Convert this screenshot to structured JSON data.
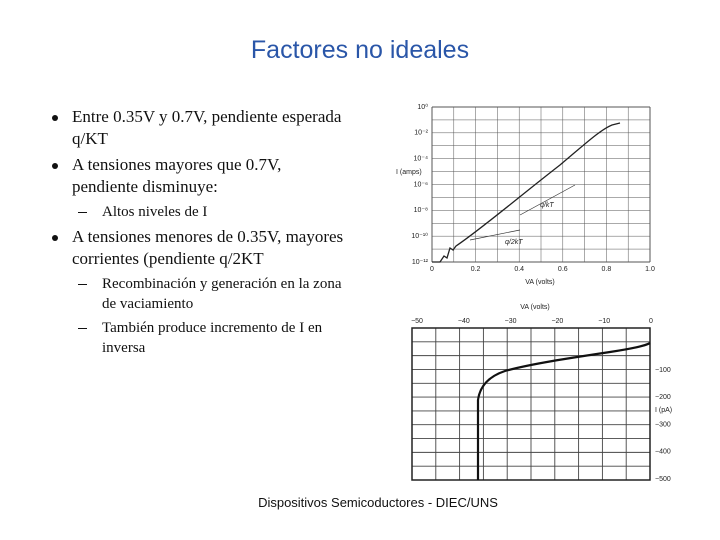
{
  "title": "Factores no ideales",
  "bullets": [
    {
      "text": "Entre 0.35V y 0.7V, pendiente esperada q/KT",
      "sub": []
    },
    {
      "text": "A tensiones mayores que 0.7V, pendiente disminuye:",
      "sub": [
        "Altos niveles de I"
      ]
    },
    {
      "text": "A tensiones menores de 0.35V, mayores corrientes (pendiente q/2KT",
      "sub": [
        "Recombinación y generación en la zona de vaciamiento",
        "También produce incremento de I en inversa"
      ]
    }
  ],
  "forward_plot": {
    "y_label": "I (amps)",
    "x_label": "VA (volts)",
    "y_tick_labels": [
      "10⁰",
      "10⁻²",
      "10⁻⁴",
      "10⁻⁶",
      "10⁻⁸",
      "10⁻¹⁰",
      "10⁻¹²"
    ],
    "x_tick_labels": [
      "0",
      "0.2",
      "0.4",
      "0.6",
      "0.8",
      "1.0"
    ],
    "annotations": [
      "q/kT",
      "q/2kT"
    ]
  },
  "reverse_plot": {
    "x_label": "VA (volts)",
    "y_label": "I (pA)",
    "x_tick_labels": [
      "−50",
      "−40",
      "−30",
      "−20",
      "−10",
      "0"
    ],
    "y_tick_labels": [
      "−100",
      "−200",
      "−300",
      "−400",
      "−500"
    ]
  },
  "footer": "Dispositivos Semicoductores - DIEC/UNS"
}
